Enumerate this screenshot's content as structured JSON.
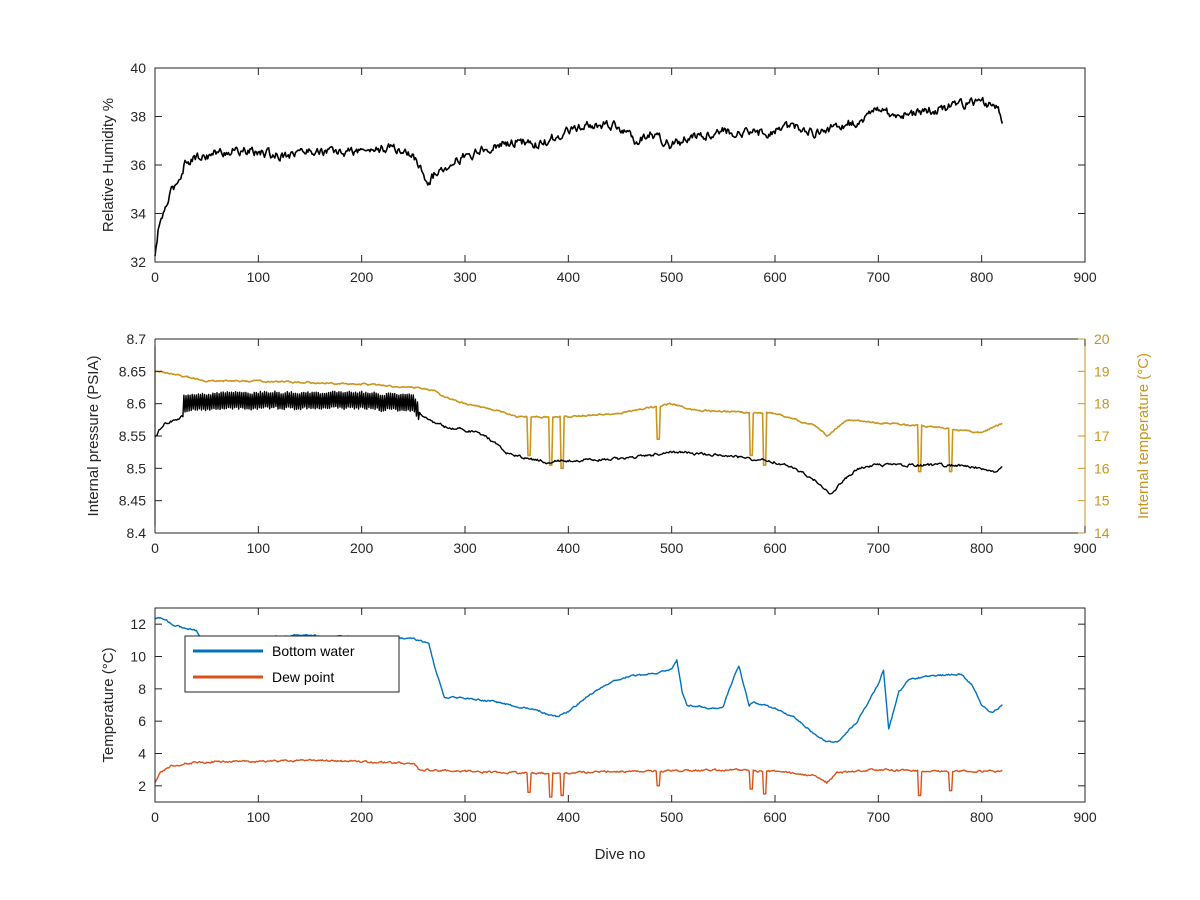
{
  "chart_data": [
    {
      "type": "line",
      "ylabel": "Relative Humidity %",
      "xlim": [
        0,
        900
      ],
      "ylim": [
        32,
        40
      ],
      "xticks": [
        0,
        100,
        200,
        300,
        400,
        500,
        600,
        700,
        800,
        900
      ],
      "yticks": [
        32,
        34,
        36,
        38,
        40
      ],
      "grid": false,
      "series": [
        {
          "color": "#000000",
          "noise": 0.35,
          "x": [
            0,
            3,
            6,
            10,
            15,
            20,
            25,
            30,
            40,
            60,
            80,
            100,
            120,
            150,
            180,
            200,
            230,
            250,
            255,
            260,
            265,
            275,
            290,
            310,
            330,
            350,
            370,
            390,
            400,
            420,
            440,
            450,
            465,
            480,
            500,
            520,
            550,
            580,
            600,
            620,
            640,
            660,
            680,
            700,
            720,
            740,
            760,
            780,
            800,
            815,
            820
          ],
          "y": [
            32.2,
            33.2,
            33.8,
            34.2,
            34.8,
            35.2,
            35.6,
            36.2,
            36.3,
            36.5,
            36.6,
            36.5,
            36.4,
            36.6,
            36.5,
            36.6,
            36.7,
            36.4,
            36.0,
            35.6,
            35.3,
            35.8,
            36.2,
            36.5,
            36.8,
            37.0,
            36.8,
            37.2,
            37.4,
            37.6,
            37.7,
            37.5,
            37.0,
            37.3,
            36.8,
            37.2,
            37.4,
            37.3,
            37.4,
            37.6,
            37.3,
            37.6,
            37.8,
            38.3,
            38.0,
            38.2,
            38.3,
            38.5,
            38.6,
            38.5,
            37.8
          ]
        }
      ]
    },
    {
      "type": "line",
      "ylabel": "Internal pressure (PSIA)",
      "y2label": "Internal temperature (°C)",
      "xlim": [
        0,
        900
      ],
      "ylim": [
        8.4,
        8.7
      ],
      "y2lim": [
        14,
        20
      ],
      "xticks": [
        0,
        100,
        200,
        300,
        400,
        500,
        600,
        700,
        800,
        900
      ],
      "yticks": [
        8.4,
        8.45,
        8.5,
        8.55,
        8.6,
        8.65,
        8.7
      ],
      "y2ticks": [
        14,
        15,
        16,
        17,
        18,
        19,
        20
      ],
      "grid": false,
      "series": [
        {
          "axis": "left",
          "color": "#000000",
          "noise": 0.004,
          "oscillation": {
            "from": 28,
            "to": 255,
            "amplitude": 0.012
          },
          "x": [
            0,
            5,
            10,
            20,
            27,
            28,
            60,
            100,
            150,
            200,
            250,
            255,
            265,
            280,
            300,
            320,
            340,
            360,
            380,
            400,
            450,
            480,
            500,
            550,
            600,
            620,
            640,
            655,
            665,
            680,
            700,
            750,
            780,
            800,
            815,
            820
          ],
          "y": [
            8.55,
            8.56,
            8.57,
            8.575,
            8.58,
            8.6,
            8.605,
            8.605,
            8.605,
            8.605,
            8.6,
            8.585,
            8.575,
            8.565,
            8.56,
            8.55,
            8.525,
            8.515,
            8.51,
            8.512,
            8.515,
            8.52,
            8.525,
            8.52,
            8.51,
            8.5,
            8.48,
            8.46,
            8.48,
            8.5,
            8.505,
            8.505,
            8.505,
            8.5,
            8.495,
            8.505
          ]
        },
        {
          "axis": "right",
          "color": "#c9961e",
          "noise": 0.05,
          "x": [
            0,
            20,
            50,
            100,
            200,
            250,
            270,
            280,
            300,
            330,
            350,
            400,
            450,
            500,
            520,
            600,
            640,
            650,
            670,
            700,
            750,
            800,
            820
          ],
          "y": [
            19.0,
            18.9,
            18.7,
            18.7,
            18.6,
            18.5,
            18.4,
            18.2,
            18.0,
            17.8,
            17.6,
            17.6,
            17.7,
            18.0,
            17.8,
            17.7,
            17.3,
            17.0,
            17.5,
            17.4,
            17.3,
            17.1,
            17.4
          ],
          "dips": [
            {
              "x": 362,
              "y": 16.4
            },
            {
              "x": 383,
              "y": 16.1
            },
            {
              "x": 394,
              "y": 16.0
            },
            {
              "x": 487,
              "y": 16.9
            },
            {
              "x": 577,
              "y": 16.4
            },
            {
              "x": 590,
              "y": 16.1
            },
            {
              "x": 740,
              "y": 15.9
            },
            {
              "x": 770,
              "y": 15.9
            }
          ]
        }
      ]
    },
    {
      "type": "line",
      "xlabel": "Dive no",
      "ylabel": "Temperature (°C)",
      "xlim": [
        0,
        900
      ],
      "ylim": [
        1,
        13
      ],
      "xticks": [
        0,
        100,
        200,
        300,
        400,
        500,
        600,
        700,
        800,
        900
      ],
      "yticks": [
        2,
        4,
        6,
        8,
        10,
        12
      ],
      "grid": false,
      "legend": "top-left",
      "series": [
        {
          "name": "Bottom water",
          "color": "#0072bd",
          "noise": 0.1,
          "x": [
            0,
            10,
            20,
            40,
            45,
            80,
            140,
            200,
            250,
            265,
            270,
            280,
            300,
            330,
            350,
            370,
            380,
            390,
            400,
            420,
            440,
            460,
            480,
            500,
            505,
            510,
            515,
            540,
            550,
            560,
            565,
            575,
            580,
            600,
            620,
            640,
            650,
            660,
            680,
            700,
            705,
            710,
            720,
            730,
            750,
            780,
            790,
            800,
            810,
            820
          ],
          "y": [
            12.4,
            12.3,
            11.9,
            11.6,
            11.1,
            11.1,
            11.3,
            11.2,
            11.1,
            10.8,
            9.5,
            7.5,
            7.4,
            7.2,
            6.9,
            6.7,
            6.4,
            6.3,
            6.6,
            7.6,
            8.4,
            8.8,
            8.9,
            9.2,
            9.8,
            7.8,
            7.0,
            6.8,
            6.9,
            8.7,
            9.4,
            7.0,
            7.2,
            6.8,
            6.2,
            5.1,
            4.7,
            4.7,
            6.0,
            8.3,
            9.2,
            5.5,
            7.8,
            8.6,
            8.8,
            8.9,
            8.3,
            7.0,
            6.5,
            7.0
          ]
        },
        {
          "name": "Dew point",
          "color": "#d95319",
          "noise": 0.12,
          "x": [
            0,
            5,
            15,
            30,
            60,
            100,
            150,
            200,
            250,
            255,
            260,
            300,
            350,
            400,
            450,
            500,
            550,
            600,
            640,
            650,
            660,
            700,
            750,
            800,
            820
          ],
          "y": [
            2.2,
            2.8,
            3.2,
            3.4,
            3.5,
            3.5,
            3.6,
            3.5,
            3.4,
            3.0,
            3.0,
            2.9,
            2.8,
            2.8,
            2.9,
            2.9,
            3.0,
            2.9,
            2.6,
            2.2,
            2.8,
            3.0,
            2.9,
            2.9,
            2.9
          ],
          "dips": [
            {
              "x": 362,
              "y": 1.6
            },
            {
              "x": 383,
              "y": 1.3
            },
            {
              "x": 394,
              "y": 1.4
            },
            {
              "x": 487,
              "y": 2.0
            },
            {
              "x": 577,
              "y": 1.8
            },
            {
              "x": 590,
              "y": 1.5
            },
            {
              "x": 740,
              "y": 1.4
            },
            {
              "x": 770,
              "y": 1.7
            }
          ]
        }
      ]
    }
  ]
}
